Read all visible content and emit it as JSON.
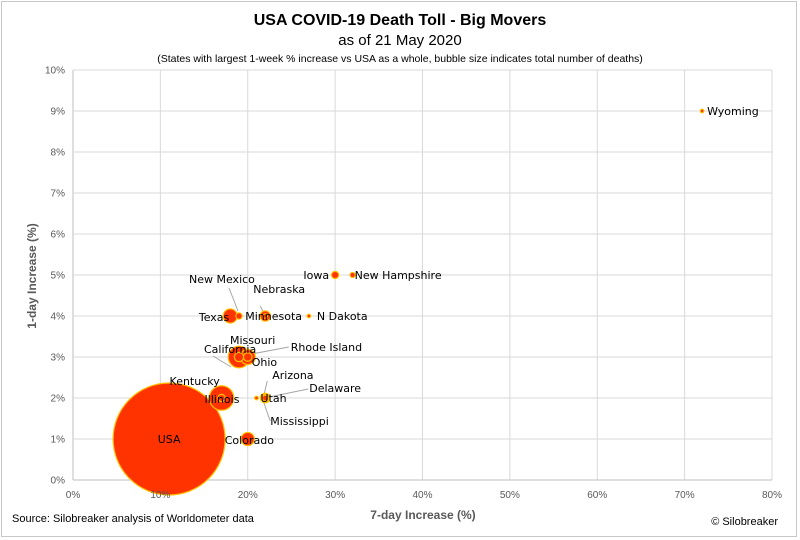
{
  "header": {
    "title": "USA COVID-19 Death Toll - Big Movers",
    "subtitle": "as of 21 May 2020",
    "note": "(States with largest 1-week % increase vs USA as a whole, bubble size indicates total number of deaths)"
  },
  "footer": {
    "source": "Source: Silobreaker analysis of Worldometer data",
    "copyright": "© Silobreaker"
  },
  "chart_data": {
    "type": "scatter",
    "title": "USA COVID-19 Death Toll - Big Movers",
    "xlabel": "7-day Increase (%)",
    "ylabel": "1-day Increase (%)",
    "xlim": [
      0,
      80
    ],
    "ylim": [
      0,
      10
    ],
    "x_ticks": [
      "0%",
      "10%",
      "20%",
      "30%",
      "40%",
      "50%",
      "60%",
      "70%",
      "80%"
    ],
    "y_ticks": [
      "0%",
      "1%",
      "2%",
      "3%",
      "4%",
      "5%",
      "6%",
      "7%",
      "8%",
      "9%",
      "10%"
    ],
    "grid": true,
    "bubble_color": "#ff3300",
    "bubble_edge": "#ffc000",
    "points": [
      {
        "label": "USA",
        "x": 11,
        "y": 1,
        "deaths": 94000
      },
      {
        "label": "Wyoming",
        "x": 72,
        "y": 9,
        "deaths": 7
      },
      {
        "label": "Iowa",
        "x": 30,
        "y": 5,
        "deaths": 400
      },
      {
        "label": "New Hampshire",
        "x": 32,
        "y": 5,
        "deaths": 200
      },
      {
        "label": "N Dakota",
        "x": 27,
        "y": 4,
        "deaths": 50
      },
      {
        "label": "Nebraska",
        "x": 22,
        "y": 4,
        "deaths": 150
      },
      {
        "label": "Minnesota",
        "x": 22,
        "y": 4,
        "deaths": 800
      },
      {
        "label": "Texas",
        "x": 18,
        "y": 4,
        "deaths": 1500
      },
      {
        "label": "New Mexico",
        "x": 19,
        "y": 4,
        "deaths": 300
      },
      {
        "label": "California",
        "x": 19,
        "y": 3,
        "deaths": 3500
      },
      {
        "label": "Missouri",
        "x": 19,
        "y": 3,
        "deaths": 650
      },
      {
        "label": "Rhode Island",
        "x": 20,
        "y": 3,
        "deaths": 550
      },
      {
        "label": "Ohio",
        "x": 20,
        "y": 3,
        "deaths": 1700
      },
      {
        "label": "Kentucky",
        "x": 17,
        "y": 2,
        "deaths": 400
      },
      {
        "label": "Illinois",
        "x": 17,
        "y": 2,
        "deaths": 4500
      },
      {
        "label": "Arizona",
        "x": 22,
        "y": 2,
        "deaths": 700
      },
      {
        "label": "Delaware",
        "x": 22,
        "y": 2,
        "deaths": 250
      },
      {
        "label": "Utah",
        "x": 21,
        "y": 2,
        "deaths": 100
      },
      {
        "label": "Mississippi",
        "x": 22,
        "y": 2,
        "deaths": 500
      },
      {
        "label": "Colorado",
        "x": 20,
        "y": 1,
        "deaths": 1300
      }
    ]
  }
}
